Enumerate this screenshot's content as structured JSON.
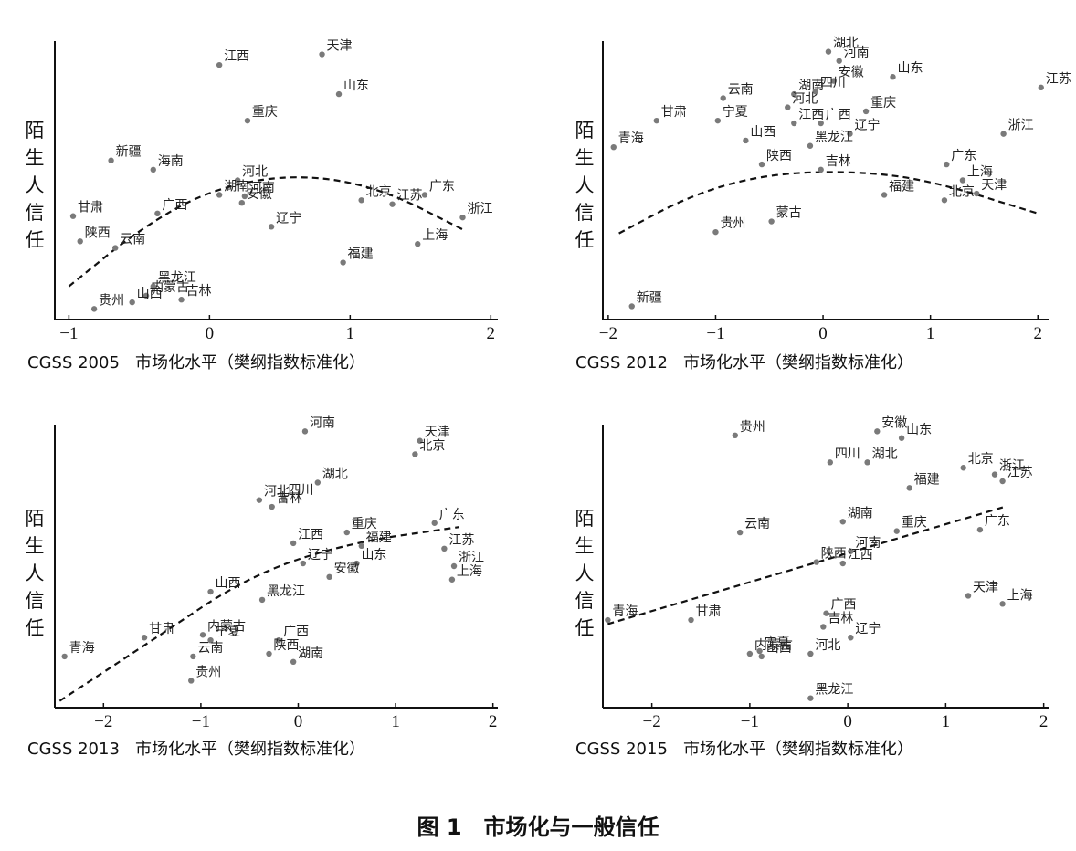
{
  "caption": "图 1　市场化与一般信任",
  "colors": {
    "point": "#7a7a7a",
    "axis": "#111111",
    "fit": "#111111"
  },
  "chart_data": [
    {
      "type": "scatter",
      "title": "CGSS 2005",
      "xlabel": "市场化水平（樊纲指数标准化）",
      "ylabel": "陌生人信任",
      "xlim": [
        -1.1,
        2.05
      ],
      "ylim": [
        -1.1,
        1.0
      ],
      "xticks": [
        -1,
        0,
        1,
        2
      ],
      "fit": "quadratic",
      "fit_points": [
        [
          -1.0,
          -0.85
        ],
        [
          -0.5,
          -0.42
        ],
        [
          0,
          -0.12
        ],
        [
          0.6,
          0.0
        ],
        [
          1.2,
          -0.1
        ],
        [
          1.8,
          -0.42
        ]
      ],
      "points": [
        {
          "name": "江西",
          "x": 0.07,
          "y": 0.82
        },
        {
          "name": "天津",
          "x": 0.8,
          "y": 0.9
        },
        {
          "name": "山东",
          "x": 0.92,
          "y": 0.6
        },
        {
          "name": "重庆",
          "x": 0.27,
          "y": 0.4
        },
        {
          "name": "新疆",
          "x": -0.7,
          "y": 0.1
        },
        {
          "name": "海南",
          "x": -0.4,
          "y": 0.03
        },
        {
          "name": "河北",
          "x": 0.2,
          "y": -0.05
        },
        {
          "name": "广东",
          "x": 1.53,
          "y": -0.16
        },
        {
          "name": "北京",
          "x": 1.08,
          "y": -0.2
        },
        {
          "name": "湖南",
          "x": 0.07,
          "y": -0.16
        },
        {
          "name": "河南",
          "x": 0.25,
          "y": -0.17
        },
        {
          "name": "浙江",
          "x": 1.8,
          "y": -0.33
        },
        {
          "name": "广西",
          "x": -0.37,
          "y": -0.3
        },
        {
          "name": "甘肃",
          "x": -0.97,
          "y": -0.32
        },
        {
          "name": "安徽",
          "x": 0.23,
          "y": -0.22
        },
        {
          "name": "江苏",
          "x": 1.3,
          "y": -0.23
        },
        {
          "name": "陕西",
          "x": -0.92,
          "y": -0.51
        },
        {
          "name": "云南",
          "x": -0.67,
          "y": -0.56
        },
        {
          "name": "辽宁",
          "x": 0.44,
          "y": -0.4
        },
        {
          "name": "上海",
          "x": 1.48,
          "y": -0.53
        },
        {
          "name": "福建",
          "x": 0.95,
          "y": -0.67
        },
        {
          "name": "内蒙古",
          "x": -0.45,
          "y": -0.92
        },
        {
          "name": "黑龙江",
          "x": -0.4,
          "y": -0.85
        },
        {
          "name": "吉林",
          "x": -0.2,
          "y": -0.95
        },
        {
          "name": "贵州",
          "x": -0.82,
          "y": -1.02
        },
        {
          "name": "山西",
          "x": -0.55,
          "y": -0.97
        }
      ]
    },
    {
      "type": "scatter",
      "title": "CGSS 2012",
      "xlabel": "市场化水平（樊纲指数标准化）",
      "ylabel": "陌生人信任",
      "xlim": [
        -2.05,
        2.1
      ],
      "ylim": [
        -1.1,
        1.0
      ],
      "xticks": [
        -2,
        -1,
        0,
        1,
        2
      ],
      "fit": "quadratic",
      "fit_points": [
        [
          -1.9,
          -0.45
        ],
        [
          -1.2,
          -0.15
        ],
        [
          -0.5,
          0.0
        ],
        [
          0.3,
          0.02
        ],
        [
          1.0,
          -0.05
        ],
        [
          2.0,
          -0.3
        ]
      ],
      "points": [
        {
          "name": "湖北",
          "x": 0.05,
          "y": 0.92
        },
        {
          "name": "河南",
          "x": 0.15,
          "y": 0.85
        },
        {
          "name": "江苏",
          "x": 2.03,
          "y": 0.65
        },
        {
          "name": "山东",
          "x": 0.65,
          "y": 0.73
        },
        {
          "name": "安徽",
          "x": 0.1,
          "y": 0.7
        },
        {
          "name": "湖南",
          "x": -0.27,
          "y": 0.6
        },
        {
          "name": "四川",
          "x": -0.07,
          "y": 0.62
        },
        {
          "name": "云南",
          "x": -0.93,
          "y": 0.57
        },
        {
          "name": "宁夏",
          "x": -0.98,
          "y": 0.4
        },
        {
          "name": "河北",
          "x": -0.33,
          "y": 0.5
        },
        {
          "name": "重庆",
          "x": 0.4,
          "y": 0.47
        },
        {
          "name": "甘肃",
          "x": -1.55,
          "y": 0.4
        },
        {
          "name": "江西",
          "x": -0.27,
          "y": 0.38
        },
        {
          "name": "广西",
          "x": -0.02,
          "y": 0.38
        },
        {
          "name": "辽宁",
          "x": 0.25,
          "y": 0.3
        },
        {
          "name": "浙江",
          "x": 1.68,
          "y": 0.3
        },
        {
          "name": "青海",
          "x": -1.95,
          "y": 0.2
        },
        {
          "name": "山西",
          "x": -0.72,
          "y": 0.25
        },
        {
          "name": "黑龙江",
          "x": -0.12,
          "y": 0.21
        },
        {
          "name": "广东",
          "x": 1.15,
          "y": 0.07
        },
        {
          "name": "陕西",
          "x": -0.57,
          "y": 0.07
        },
        {
          "name": "上海",
          "x": 1.3,
          "y": -0.05
        },
        {
          "name": "吉林",
          "x": -0.02,
          "y": 0.03
        },
        {
          "name": "福建",
          "x": 0.57,
          "y": -0.16
        },
        {
          "name": "北京",
          "x": 1.13,
          "y": -0.2
        },
        {
          "name": "天津",
          "x": 1.43,
          "y": -0.15
        },
        {
          "name": "蒙古",
          "x": -0.48,
          "y": -0.36
        },
        {
          "name": "贵州",
          "x": -1.0,
          "y": -0.44
        },
        {
          "name": "新疆",
          "x": -1.78,
          "y": -1.0
        }
      ]
    },
    {
      "type": "scatter",
      "title": "CGSS 2013",
      "xlabel": "市场化水平（樊纲指数标准化）",
      "ylabel": "陌生人信任",
      "xlim": [
        -2.5,
        2.05
      ],
      "ylim": [
        -1.1,
        1.0
      ],
      "xticks": [
        -2,
        -1,
        0,
        1,
        2
      ],
      "fit": "quadratic",
      "fit_points": [
        [
          -2.45,
          -1.05
        ],
        [
          -1.5,
          -0.6
        ],
        [
          -0.5,
          -0.12
        ],
        [
          0.5,
          0.12
        ],
        [
          1.65,
          0.24
        ]
      ],
      "points": [
        {
          "name": "河南",
          "x": 0.07,
          "y": 0.95
        },
        {
          "name": "天津",
          "x": 1.25,
          "y": 0.88
        },
        {
          "name": "北京",
          "x": 1.2,
          "y": 0.78
        },
        {
          "name": "湖北",
          "x": 0.2,
          "y": 0.57
        },
        {
          "name": "四川",
          "x": -0.15,
          "y": 0.45
        },
        {
          "name": "河北",
          "x": -0.4,
          "y": 0.44
        },
        {
          "name": "吉林",
          "x": -0.27,
          "y": 0.39
        },
        {
          "name": "广东",
          "x": 1.4,
          "y": 0.27
        },
        {
          "name": "重庆",
          "x": 0.5,
          "y": 0.2
        },
        {
          "name": "江西",
          "x": -0.05,
          "y": 0.12
        },
        {
          "name": "福建",
          "x": 0.65,
          "y": 0.1
        },
        {
          "name": "江苏",
          "x": 1.5,
          "y": 0.08
        },
        {
          "name": "辽宁",
          "x": 0.05,
          "y": -0.03
        },
        {
          "name": "山东",
          "x": 0.6,
          "y": -0.03
        },
        {
          "name": "浙江",
          "x": 1.6,
          "y": -0.05
        },
        {
          "name": "安徽",
          "x": 0.32,
          "y": -0.13
        },
        {
          "name": "上海",
          "x": 1.58,
          "y": -0.15
        },
        {
          "name": "山西",
          "x": -0.9,
          "y": -0.24
        },
        {
          "name": "黑龙江",
          "x": -0.37,
          "y": -0.3
        },
        {
          "name": "甘肃",
          "x": -1.58,
          "y": -0.58
        },
        {
          "name": "内蒙古",
          "x": -0.98,
          "y": -0.56
        },
        {
          "name": "宁夏",
          "x": -0.9,
          "y": -0.6
        },
        {
          "name": "广西",
          "x": -0.2,
          "y": -0.6
        },
        {
          "name": "青海",
          "x": -2.4,
          "y": -0.72
        },
        {
          "name": "云南",
          "x": -1.08,
          "y": -0.72
        },
        {
          "name": "陕西",
          "x": -0.3,
          "y": -0.7
        },
        {
          "name": "湖南",
          "x": -0.05,
          "y": -0.76
        },
        {
          "name": "贵州",
          "x": -1.1,
          "y": -0.9
        }
      ]
    },
    {
      "type": "scatter",
      "title": "CGSS 2015",
      "xlabel": "市场化水平（樊纲指数标准化）",
      "ylabel": "陌生人信任",
      "xlim": [
        -2.5,
        2.05
      ],
      "ylim": [
        -1.1,
        1.0
      ],
      "xticks": [
        -2,
        -1,
        0,
        1,
        2
      ],
      "fit": "linear",
      "fit_points": [
        [
          -2.45,
          -0.48
        ],
        [
          1.6,
          0.39
        ]
      ],
      "points": [
        {
          "name": "贵州",
          "x": -1.15,
          "y": 0.92
        },
        {
          "name": "安徽",
          "x": 0.3,
          "y": 0.95
        },
        {
          "name": "山东",
          "x": 0.55,
          "y": 0.9
        },
        {
          "name": "四川",
          "x": -0.18,
          "y": 0.72
        },
        {
          "name": "湖北",
          "x": 0.2,
          "y": 0.72
        },
        {
          "name": "北京",
          "x": 1.18,
          "y": 0.68
        },
        {
          "name": "浙江",
          "x": 1.5,
          "y": 0.63
        },
        {
          "name": "福建",
          "x": 0.63,
          "y": 0.53
        },
        {
          "name": "江苏",
          "x": 1.58,
          "y": 0.58
        },
        {
          "name": "湖南",
          "x": -0.05,
          "y": 0.28
        },
        {
          "name": "云南",
          "x": -1.1,
          "y": 0.2
        },
        {
          "name": "重庆",
          "x": 0.5,
          "y": 0.21
        },
        {
          "name": "广东",
          "x": 1.35,
          "y": 0.22
        },
        {
          "name": "河南",
          "x": 0.03,
          "y": 0.06
        },
        {
          "name": "陕西",
          "x": -0.32,
          "y": -0.02
        },
        {
          "name": "江西",
          "x": -0.05,
          "y": -0.03
        },
        {
          "name": "天津",
          "x": 1.23,
          "y": -0.27
        },
        {
          "name": "上海",
          "x": 1.58,
          "y": -0.33
        },
        {
          "name": "青海",
          "x": -2.45,
          "y": -0.45
        },
        {
          "name": "甘肃",
          "x": -1.6,
          "y": -0.45
        },
        {
          "name": "广西",
          "x": -0.22,
          "y": -0.4
        },
        {
          "name": "吉林",
          "x": -0.25,
          "y": -0.5
        },
        {
          "name": "辽宁",
          "x": 0.03,
          "y": -0.58
        },
        {
          "name": "宁夏",
          "x": -0.9,
          "y": -0.68
        },
        {
          "name": "内蒙古",
          "x": -1.0,
          "y": -0.7
        },
        {
          "name": "山西",
          "x": -0.88,
          "y": -0.72
        },
        {
          "name": "河北",
          "x": -0.38,
          "y": -0.7
        },
        {
          "name": "黑龙江",
          "x": -0.38,
          "y": -1.03
        }
      ]
    }
  ]
}
